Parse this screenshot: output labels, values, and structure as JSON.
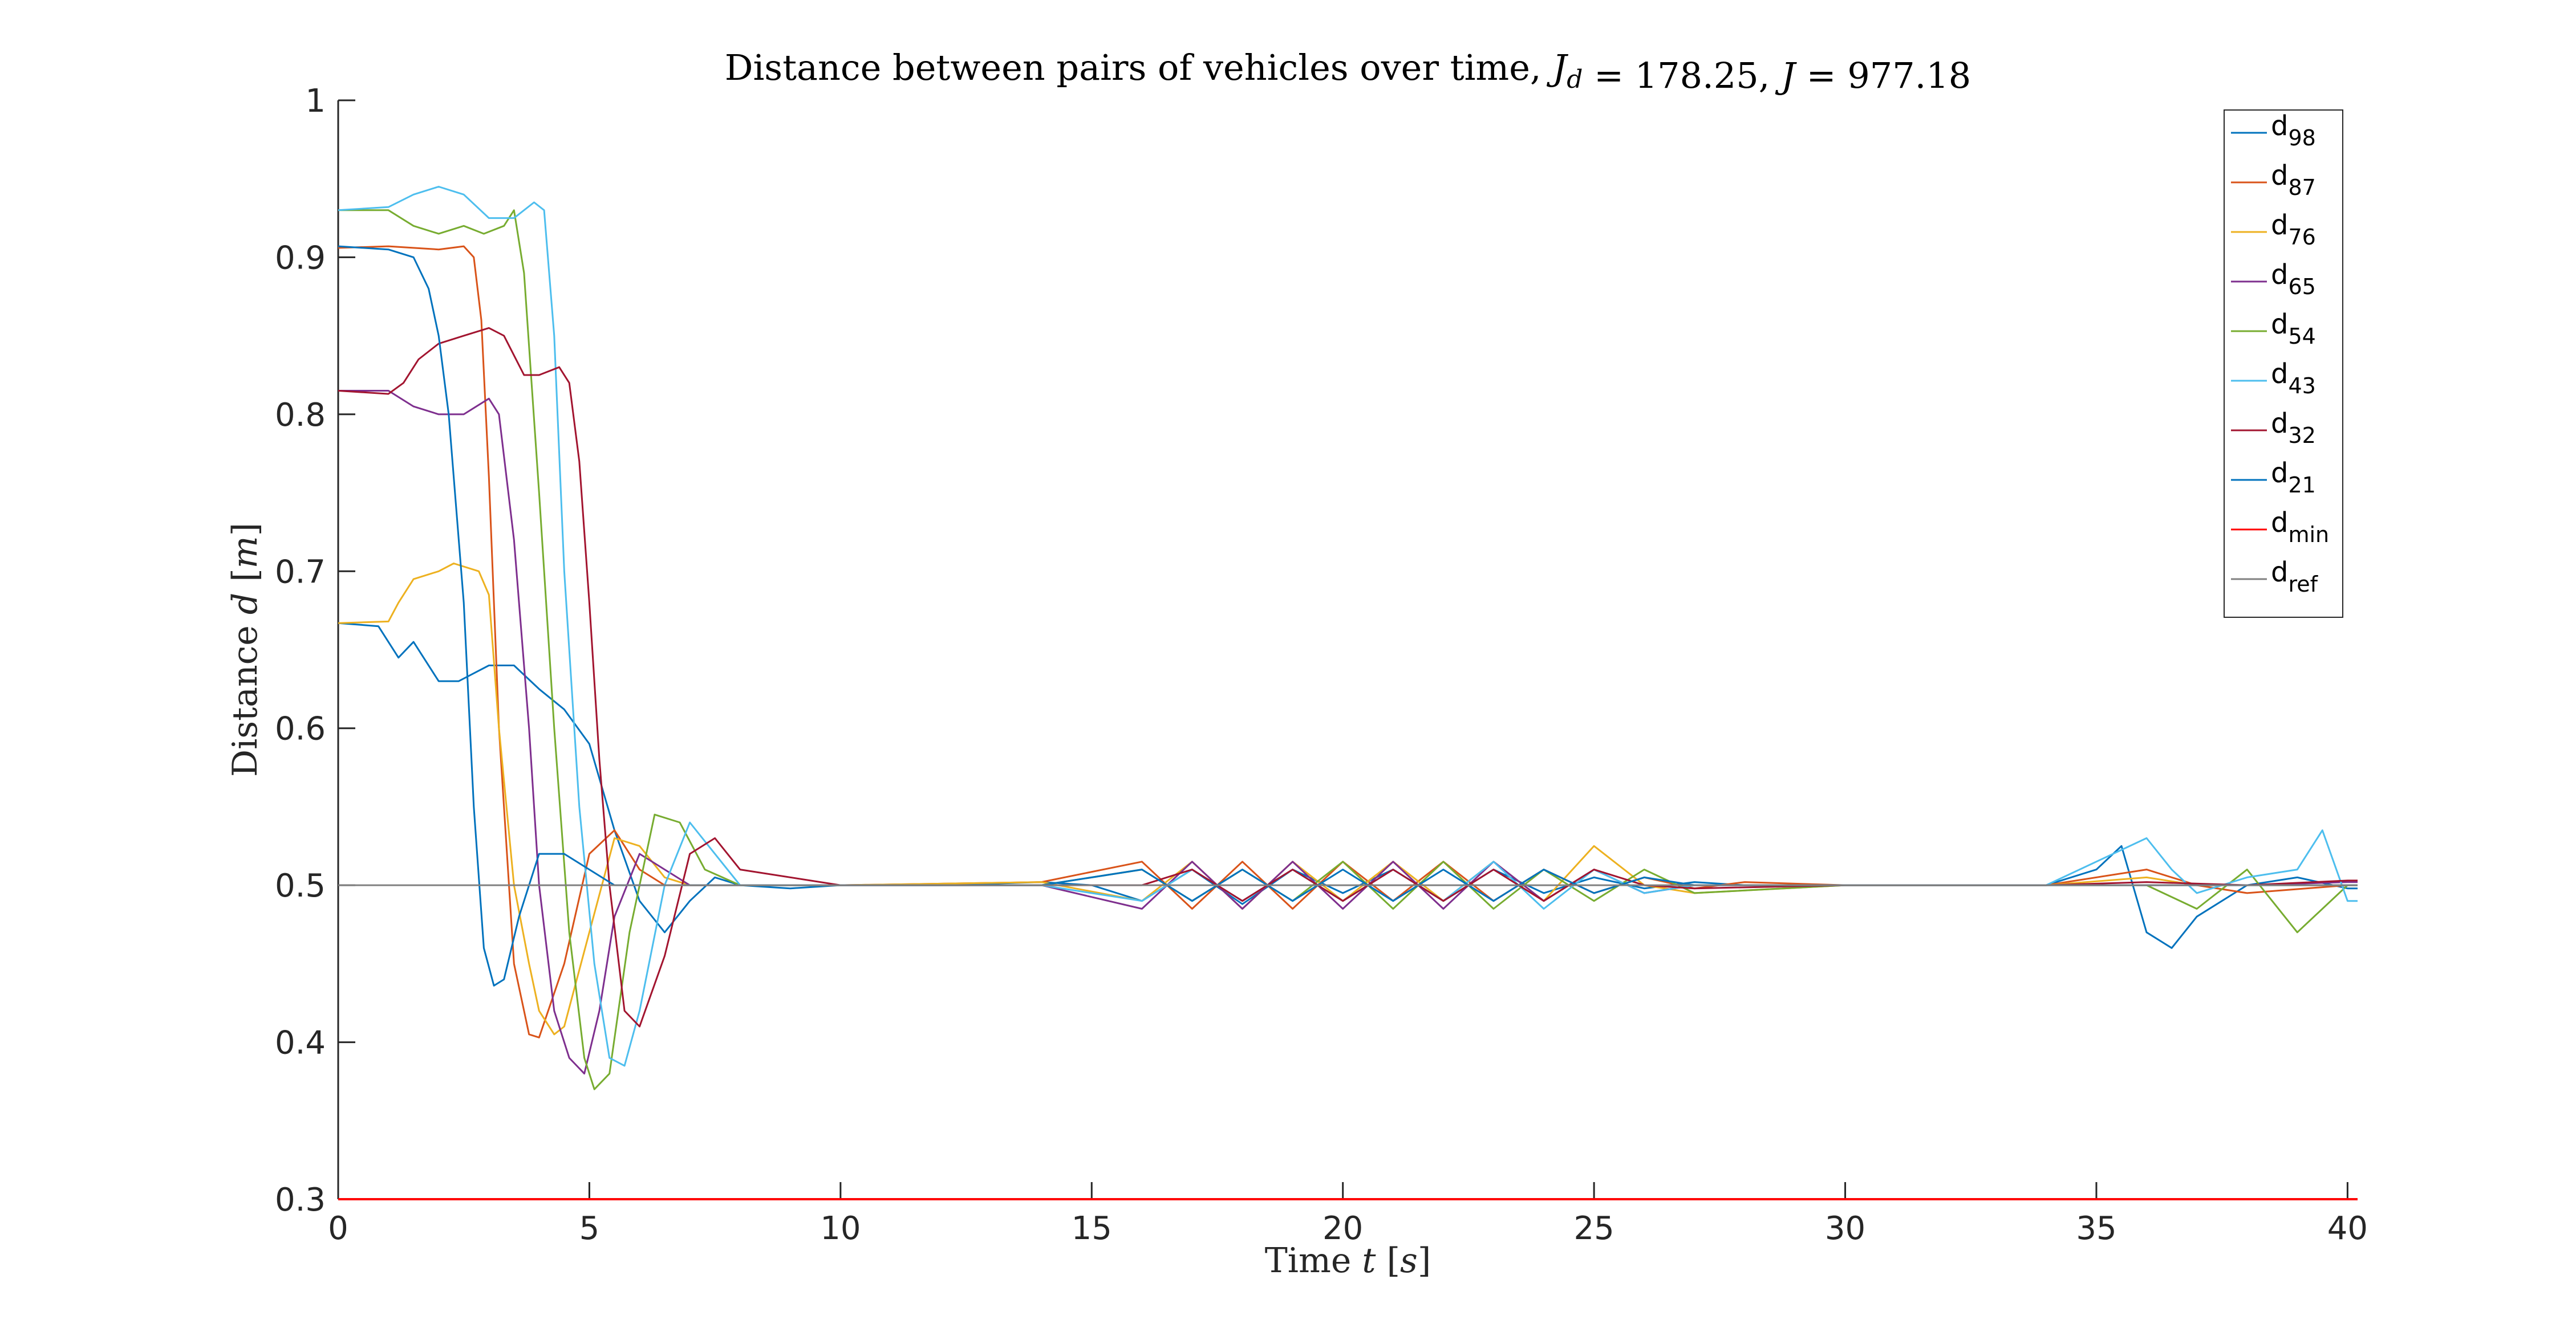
{
  "chart_data": {
    "type": "line",
    "title": "Distance between pairs of vehicles over time, ",
    "title_math": [
      {
        "sym": "J",
        "sub": "d"
      },
      {
        "text": " = 178.25, "
      },
      {
        "sym": "J",
        "sub": ""
      },
      {
        "text": " = 977.18"
      }
    ],
    "xlabel": "Time ",
    "xlabel_var": "t",
    "xlabel_unit": "s",
    "ylabel": "Distance ",
    "ylabel_var": "d",
    "ylabel_unit": "m",
    "xlim": [
      0,
      40.2
    ],
    "ylim": [
      0.3,
      1.0
    ],
    "xticks": [
      0,
      5,
      10,
      15,
      20,
      25,
      30,
      35,
      40
    ],
    "yticks": [
      0.3,
      0.4,
      0.5,
      0.6,
      0.7,
      0.8,
      0.9,
      1.0
    ],
    "ytick_labels": [
      "0.3",
      "0.4",
      "0.5",
      "0.6",
      "0.7",
      "0.8",
      "0.9",
      "1"
    ],
    "grid": false,
    "legend_position": "top-right",
    "series": [
      {
        "name": "d",
        "sub": "98",
        "color": "#0072BD",
        "x": [
          0,
          0.8,
          1.2,
          1.5,
          2.0,
          2.4,
          2.7,
          3.0,
          3.5,
          4.0,
          4.5,
          5.0,
          5.5,
          6.0,
          6.5,
          7.0,
          7.5,
          8.0,
          9.0,
          10,
          12,
          14,
          15,
          16,
          17,
          18,
          19,
          20,
          21,
          22,
          23,
          24,
          25,
          26,
          27,
          28,
          30,
          32,
          34,
          35,
          35.5,
          36,
          36.5,
          37,
          38,
          39,
          40,
          40.2
        ],
        "y": [
          0.667,
          0.665,
          0.645,
          0.655,
          0.63,
          0.63,
          0.635,
          0.64,
          0.64,
          0.625,
          0.612,
          0.59,
          0.535,
          0.49,
          0.47,
          0.49,
          0.505,
          0.5,
          0.498,
          0.5,
          0.5,
          0.502,
          0.5,
          0.49,
          0.51,
          0.488,
          0.51,
          0.495,
          0.51,
          0.49,
          0.51,
          0.495,
          0.505,
          0.498,
          0.502,
          0.5,
          0.5,
          0.5,
          0.5,
          0.51,
          0.525,
          0.47,
          0.46,
          0.48,
          0.5,
          0.505,
          0.498,
          0.498
        ]
      },
      {
        "name": "d",
        "sub": "87",
        "color": "#D95319",
        "x": [
          0,
          1.0,
          2.0,
          2.5,
          2.7,
          2.85,
          3.0,
          3.2,
          3.5,
          3.8,
          4.0,
          4.5,
          5.0,
          5.5,
          6.0,
          6.5,
          7.0,
          8.0,
          10,
          14,
          16,
          17,
          18,
          19,
          20,
          21,
          22,
          23,
          24,
          25,
          26,
          27,
          28,
          30,
          34,
          36,
          37,
          38,
          40,
          40.2
        ],
        "y": [
          0.906,
          0.907,
          0.905,
          0.907,
          0.9,
          0.86,
          0.76,
          0.6,
          0.45,
          0.405,
          0.403,
          0.45,
          0.52,
          0.535,
          0.51,
          0.5,
          0.5,
          0.5,
          0.5,
          0.502,
          0.515,
          0.485,
          0.515,
          0.485,
          0.515,
          0.49,
          0.515,
          0.49,
          0.51,
          0.495,
          0.505,
          0.498,
          0.502,
          0.5,
          0.5,
          0.51,
          0.5,
          0.495,
          0.5,
          0.5
        ]
      },
      {
        "name": "d",
        "sub": "76",
        "color": "#EDB120",
        "x": [
          0,
          1.0,
          1.2,
          1.5,
          2.0,
          2.3,
          2.8,
          3.0,
          3.2,
          3.5,
          3.8,
          4.0,
          4.3,
          4.5,
          5.0,
          5.5,
          6.0,
          6.5,
          7.0,
          8.0,
          10,
          14,
          16,
          17,
          18,
          19,
          20,
          21,
          22,
          23,
          24,
          25,
          26,
          27,
          30,
          34,
          36,
          37,
          38,
          40,
          40.2
        ],
        "y": [
          0.667,
          0.668,
          0.68,
          0.695,
          0.7,
          0.705,
          0.7,
          0.685,
          0.6,
          0.5,
          0.45,
          0.42,
          0.405,
          0.41,
          0.47,
          0.53,
          0.525,
          0.505,
          0.5,
          0.5,
          0.5,
          0.502,
          0.49,
          0.515,
          0.485,
          0.515,
          0.49,
          0.515,
          0.49,
          0.515,
          0.49,
          0.525,
          0.5,
          0.495,
          0.5,
          0.5,
          0.505,
          0.5,
          0.5,
          0.5,
          0.5
        ]
      },
      {
        "name": "d",
        "sub": "65",
        "color": "#7E2F8E",
        "x": [
          0,
          1.0,
          1.5,
          2.0,
          2.5,
          3.0,
          3.2,
          3.5,
          3.8,
          4.0,
          4.3,
          4.6,
          4.9,
          5.2,
          5.5,
          6.0,
          6.5,
          7.0,
          8.0,
          10,
          14,
          16,
          17,
          18,
          19,
          20,
          21,
          22,
          23,
          24,
          25,
          26,
          27,
          30,
          34,
          36,
          38,
          40,
          40.2
        ],
        "y": [
          0.815,
          0.815,
          0.805,
          0.8,
          0.8,
          0.81,
          0.8,
          0.72,
          0.6,
          0.5,
          0.42,
          0.39,
          0.38,
          0.42,
          0.48,
          0.52,
          0.51,
          0.5,
          0.5,
          0.5,
          0.5,
          0.485,
          0.515,
          0.485,
          0.515,
          0.485,
          0.515,
          0.485,
          0.515,
          0.49,
          0.51,
          0.495,
          0.5,
          0.5,
          0.5,
          0.5,
          0.5,
          0.502,
          0.502
        ]
      },
      {
        "name": "d",
        "sub": "54",
        "color": "#77AC30",
        "x": [
          0,
          1.0,
          1.5,
          2.0,
          2.5,
          2.9,
          3.3,
          3.5,
          3.7,
          4.0,
          4.3,
          4.6,
          4.9,
          5.1,
          5.4,
          5.8,
          6.3,
          6.8,
          7.3,
          8.0,
          10,
          14,
          16,
          17,
          18,
          19,
          20,
          21,
          22,
          23,
          24,
          25,
          26,
          27,
          30,
          34,
          36,
          37,
          38,
          39,
          40,
          40.2
        ],
        "y": [
          0.93,
          0.93,
          0.92,
          0.915,
          0.92,
          0.915,
          0.92,
          0.93,
          0.89,
          0.75,
          0.6,
          0.47,
          0.39,
          0.37,
          0.38,
          0.47,
          0.545,
          0.54,
          0.51,
          0.5,
          0.5,
          0.5,
          0.51,
          0.49,
          0.51,
          0.49,
          0.515,
          0.485,
          0.515,
          0.485,
          0.51,
          0.49,
          0.51,
          0.495,
          0.5,
          0.5,
          0.5,
          0.485,
          0.51,
          0.47,
          0.5,
          0.5
        ]
      },
      {
        "name": "d",
        "sub": "43",
        "color": "#4DBEEE",
        "x": [
          0,
          1.0,
          1.5,
          2.0,
          2.5,
          3.0,
          3.5,
          3.9,
          4.1,
          4.3,
          4.5,
          4.8,
          5.1,
          5.4,
          5.7,
          6.0,
          6.5,
          7.0,
          7.5,
          8.0,
          10,
          14,
          16,
          17,
          18,
          19,
          20,
          21,
          22,
          23,
          24,
          25,
          26,
          27,
          30,
          34,
          36,
          36.5,
          37,
          38,
          39,
          39.5,
          40,
          40.2
        ],
        "y": [
          0.93,
          0.932,
          0.94,
          0.945,
          0.94,
          0.925,
          0.925,
          0.935,
          0.93,
          0.85,
          0.7,
          0.55,
          0.45,
          0.39,
          0.385,
          0.42,
          0.5,
          0.54,
          0.52,
          0.5,
          0.5,
          0.5,
          0.49,
          0.51,
          0.49,
          0.51,
          0.49,
          0.51,
          0.49,
          0.515,
          0.485,
          0.51,
          0.495,
          0.5,
          0.5,
          0.5,
          0.53,
          0.51,
          0.495,
          0.505,
          0.51,
          0.535,
          0.49,
          0.49
        ]
      },
      {
        "name": "d",
        "sub": "32",
        "color": "#A2142F",
        "x": [
          0,
          1.0,
          1.3,
          1.6,
          2.0,
          2.5,
          3.0,
          3.3,
          3.7,
          4.0,
          4.4,
          4.6,
          4.8,
          5.0,
          5.2,
          5.4,
          5.7,
          6.0,
          6.5,
          7.0,
          7.5,
          8.0,
          10,
          14,
          16,
          17,
          18,
          19,
          20,
          21,
          22,
          23,
          24,
          25,
          26,
          27,
          30,
          34,
          36,
          38,
          40,
          40.2
        ],
        "y": [
          0.815,
          0.813,
          0.82,
          0.835,
          0.845,
          0.85,
          0.855,
          0.85,
          0.825,
          0.825,
          0.83,
          0.82,
          0.77,
          0.68,
          0.58,
          0.5,
          0.42,
          0.41,
          0.455,
          0.52,
          0.53,
          0.51,
          0.5,
          0.5,
          0.5,
          0.51,
          0.49,
          0.51,
          0.49,
          0.51,
          0.49,
          0.51,
          0.49,
          0.51,
          0.5,
          0.498,
          0.5,
          0.5,
          0.502,
          0.5,
          0.503,
          0.503
        ]
      },
      {
        "name": "d",
        "sub": "21",
        "color": "#0072BD",
        "x": [
          0,
          1.0,
          1.5,
          1.8,
          2.0,
          2.2,
          2.5,
          2.7,
          2.9,
          3.1,
          3.3,
          3.6,
          4.0,
          4.5,
          5.0,
          5.5,
          6.0,
          6.5,
          7.0,
          8.0,
          10,
          14,
          16,
          17,
          18,
          19,
          20,
          21,
          22,
          23,
          24,
          25,
          26,
          27,
          30,
          34,
          36,
          38,
          40,
          40.2
        ],
        "y": [
          0.907,
          0.905,
          0.9,
          0.88,
          0.85,
          0.8,
          0.68,
          0.55,
          0.46,
          0.436,
          0.44,
          0.48,
          0.52,
          0.52,
          0.51,
          0.5,
          0.5,
          0.5,
          0.5,
          0.5,
          0.5,
          0.5,
          0.51,
          0.49,
          0.51,
          0.49,
          0.51,
          0.49,
          0.51,
          0.49,
          0.51,
          0.495,
          0.505,
          0.5,
          0.5,
          0.5,
          0.5,
          0.5,
          0.5,
          0.5
        ]
      },
      {
        "name": "d",
        "sub": "min",
        "color": "#FF0000",
        "x": [
          0,
          40.2
        ],
        "y": [
          0.3,
          0.3
        ]
      },
      {
        "name": "d",
        "sub": "ref",
        "color": "#808080",
        "x": [
          0,
          40.2
        ],
        "y": [
          0.5,
          0.5
        ]
      }
    ]
  }
}
